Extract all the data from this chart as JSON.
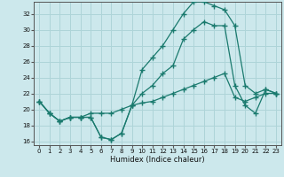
{
  "xlabel": "Humidex (Indice chaleur)",
  "bg_color": "#cce8ec",
  "grid_color": "#aed4d8",
  "line_color": "#1a7a6e",
  "xlim": [
    -0.5,
    23.5
  ],
  "ylim": [
    15.5,
    33.5
  ],
  "xticks": [
    0,
    1,
    2,
    3,
    4,
    5,
    6,
    7,
    8,
    9,
    10,
    11,
    12,
    13,
    14,
    15,
    16,
    17,
    18,
    19,
    20,
    21,
    22,
    23
  ],
  "yticks": [
    16,
    18,
    20,
    22,
    24,
    26,
    28,
    30,
    32
  ],
  "line1_x": [
    0,
    1,
    2,
    3,
    4,
    5,
    6,
    7,
    8,
    9,
    10,
    11,
    12,
    13,
    14,
    15,
    16,
    17,
    18,
    19,
    20,
    21,
    22,
    23
  ],
  "line1_y": [
    21.0,
    19.5,
    18.5,
    19.0,
    19.0,
    19.0,
    16.5,
    16.2,
    17.0,
    20.5,
    25.0,
    26.5,
    28.0,
    30.0,
    32.0,
    33.5,
    33.5,
    33.0,
    32.5,
    30.5,
    23.0,
    22.0,
    22.5,
    22.0
  ],
  "line2_x": [
    0,
    1,
    2,
    3,
    4,
    5,
    6,
    7,
    8,
    9,
    10,
    11,
    12,
    13,
    14,
    15,
    16,
    17,
    18,
    19,
    20,
    21,
    22,
    23
  ],
  "line2_y": [
    21.0,
    19.5,
    18.5,
    19.0,
    19.0,
    19.0,
    16.5,
    16.2,
    17.0,
    20.5,
    22.0,
    23.0,
    24.5,
    25.5,
    28.8,
    30.0,
    31.0,
    30.5,
    30.5,
    23.0,
    20.5,
    19.5,
    22.5,
    22.0
  ],
  "line3_x": [
    0,
    1,
    2,
    3,
    4,
    5,
    6,
    7,
    8,
    9,
    10,
    11,
    12,
    13,
    14,
    15,
    16,
    17,
    18,
    19,
    20,
    21,
    22,
    23
  ],
  "line3_y": [
    21.0,
    19.5,
    18.5,
    19.0,
    19.0,
    19.5,
    19.5,
    19.5,
    20.0,
    20.5,
    20.8,
    21.0,
    21.5,
    22.0,
    22.5,
    23.0,
    23.5,
    24.0,
    24.5,
    21.5,
    21.0,
    21.5,
    22.0,
    22.0
  ]
}
